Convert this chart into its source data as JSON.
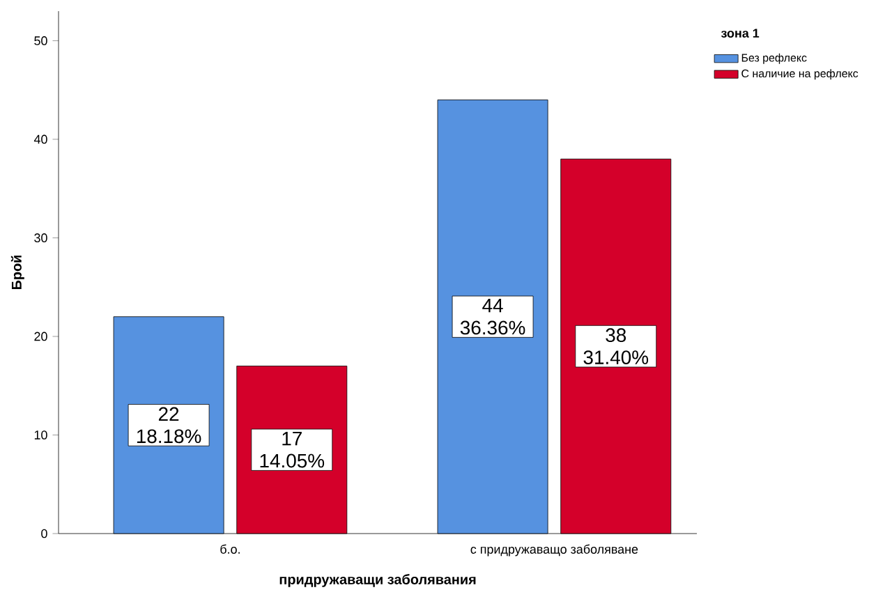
{
  "chart_data": {
    "type": "bar",
    "xlabel": "придружаващи заболявания",
    "ylabel": "Брой",
    "legend_title": "зона 1",
    "legend": "top right",
    "categories": [
      "б.о.",
      "с придружаващо заболяване"
    ],
    "series": [
      {
        "name": "Без рефлекс",
        "color": "#5692e0",
        "values": [
          22,
          44
        ],
        "value_labels": [
          "22 18.18%",
          "44 36.36%"
        ]
      },
      {
        "name": "С наличие на рефлекс",
        "color": "#d4002a",
        "values": [
          17,
          38
        ],
        "value_labels": [
          "17 14.05%",
          "38 31.40%"
        ]
      }
    ],
    "ylim": [
      0,
      53
    ],
    "yticks": [
      0,
      10,
      20,
      30,
      40,
      50
    ]
  }
}
